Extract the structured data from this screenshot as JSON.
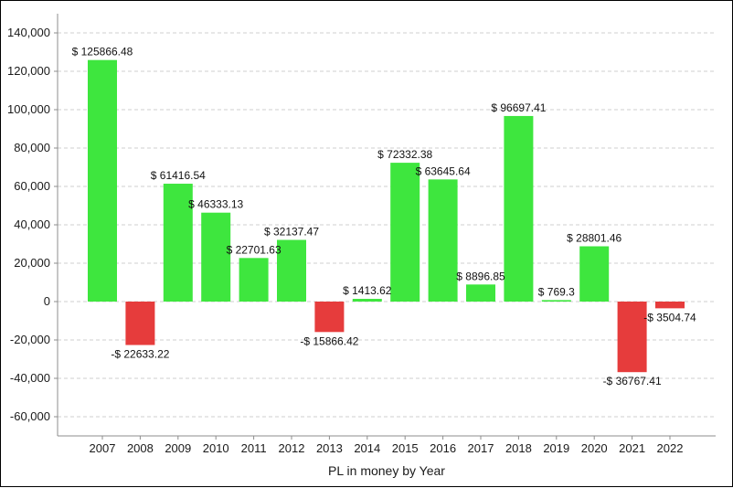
{
  "chart_data": {
    "type": "bar",
    "title": "",
    "xlabel": "PL in money by Year",
    "ylabel": "",
    "categories": [
      "2007",
      "2008",
      "2009",
      "2010",
      "2011",
      "2012",
      "2013",
      "2014",
      "2015",
      "2016",
      "2017",
      "2018",
      "2019",
      "2020",
      "2021",
      "2022"
    ],
    "values": [
      125866.48,
      -22633.22,
      61416.54,
      46333.13,
      22701.63,
      32137.47,
      -15866.42,
      1413.62,
      72332.38,
      63645.64,
      8896.85,
      96697.41,
      769.3,
      28801.46,
      -36767.41,
      -3504.74
    ],
    "data_labels": [
      "$ 125866.48",
      "-$ 22633.22",
      "$ 61416.54",
      "$ 46333.13",
      "$ 22701.63",
      "$ 32137.47",
      "-$ 15866.42",
      "$ 1413.62",
      "$ 72332.38",
      "$ 63645.64",
      "$ 8896.85",
      "$ 96697.41",
      "$ 769.3",
      "$ 28801.46",
      "-$ 36767.41",
      "-$ 3504.74"
    ],
    "ylim": [
      -70000,
      150000
    ],
    "yticks": [
      -60000,
      -40000,
      -20000,
      0,
      20000,
      40000,
      60000,
      80000,
      100000,
      120000,
      140000
    ],
    "ytick_labels": [
      "-60,000",
      "-40,000",
      "-20,000",
      "0",
      "20,000",
      "40,000",
      "60,000",
      "80,000",
      "100,000",
      "120,000",
      "140,000"
    ],
    "grid": true,
    "colors": {
      "positive": "#3ee63e",
      "negative": "#e63c3c",
      "grid": "#cfcfcf",
      "axis": "#8c8c8c"
    }
  }
}
